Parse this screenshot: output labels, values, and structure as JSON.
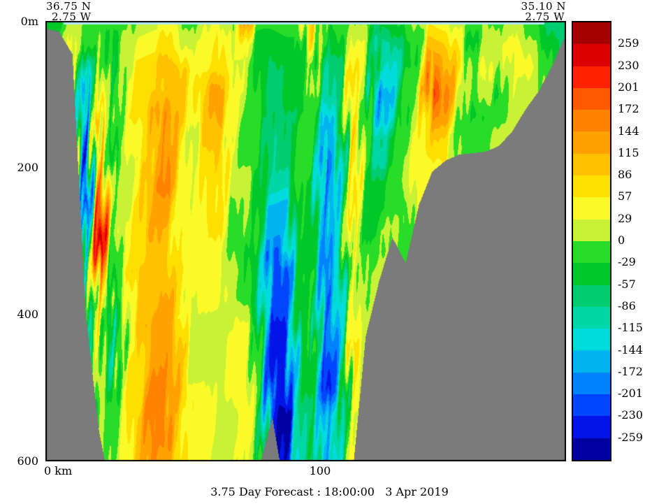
{
  "chart_data": {
    "type": "heatmap",
    "title": "3.75 Day Forecast : 18:00:00   3 Apr 2019",
    "corner_labels": {
      "top_left": [
        "36.75 N",
        "2.75 W"
      ],
      "top_right": [
        "35.10 N",
        "2.75 W"
      ]
    },
    "x_range_km": [
      0,
      190
    ],
    "depth_range_m": [
      0,
      600
    ],
    "xticks": [
      {
        "km": 0,
        "label": "0 km"
      },
      {
        "km": 100,
        "label": "100"
      }
    ],
    "yticks": [
      {
        "m": 0,
        "label": "0m"
      },
      {
        "m": 200,
        "label": "200"
      },
      {
        "m": 400,
        "label": "400"
      },
      {
        "m": 600,
        "label": "600"
      }
    ],
    "colorbar": {
      "levels": [
        259,
        230,
        201,
        172,
        144,
        115,
        86,
        57,
        29,
        0,
        -29,
        -57,
        -86,
        -115,
        -144,
        -172,
        -201,
        -230,
        -259
      ],
      "band_colors": [
        "#a60000",
        "#dc0000",
        "#ff2000",
        "#ff5a00",
        "#ff8200",
        "#ffa200",
        "#ffc100",
        "#ffdf00",
        "#fafa28",
        "#c8f235",
        "#28dc28",
        "#00c828",
        "#00cd70",
        "#00d7a8",
        "#00dcdc",
        "#00b4f0",
        "#0082ff",
        "#0046ff",
        "#0014e6",
        "#0000a0"
      ],
      "mask_color": "#7b7b7b"
    },
    "surface_line_color": "#aee8f8",
    "grid": {
      "note": "coarse reconstruction of the section field; columns uniformly spaced 0-190 km, rows uniformly spaced 0-600 m; values in colorbar units",
      "nx": 40,
      "nz": 20,
      "values_column_major": [
        [
          -70,
          -15,
          -15,
          -15,
          -15,
          -15,
          -15,
          -15,
          -15,
          -15,
          -15,
          -15,
          -15,
          -15,
          -15,
          -15,
          -15,
          -15,
          -15,
          -15
        ],
        [
          -43,
          -15,
          -15,
          -15,
          -15,
          -15,
          -15,
          -15,
          -15,
          -15,
          -15,
          -15,
          -15,
          -15,
          -15,
          -15,
          -15,
          -15,
          -15,
          -15
        ],
        [
          15,
          43,
          43,
          43,
          43,
          43,
          43,
          43,
          43,
          43,
          43,
          43,
          43,
          43,
          43,
          43,
          43,
          43,
          43,
          43
        ],
        [
          -15,
          -43,
          -130,
          -186,
          -215,
          -270,
          -270,
          -245,
          -215,
          -186,
          -186,
          -158,
          -130,
          -100,
          -100,
          -100,
          -100,
          -100,
          -100,
          -100
        ],
        [
          -15,
          15,
          43,
          70,
          70,
          130,
          158,
          186,
          245,
          270,
          245,
          186,
          130,
          100,
          43,
          15,
          15,
          15,
          15,
          15
        ],
        [
          -15,
          -43,
          -70,
          -70,
          -43,
          -43,
          -43,
          -15,
          -15,
          -15,
          -43,
          -43,
          -43,
          -130,
          -130,
          -130,
          -70,
          -15,
          -15,
          -15
        ],
        [
          -15,
          15,
          15,
          43,
          43,
          43,
          15,
          15,
          15,
          43,
          43,
          43,
          15,
          15,
          15,
          70,
          70,
          43,
          43,
          43
        ],
        [
          15,
          43,
          70,
          70,
          70,
          43,
          43,
          43,
          70,
          70,
          70,
          100,
          100,
          100,
          70,
          70,
          70,
          100,
          100,
          100
        ],
        [
          15,
          43,
          70,
          70,
          100,
          100,
          100,
          130,
          130,
          130,
          100,
          100,
          100,
          130,
          130,
          130,
          158,
          158,
          158,
          158
        ],
        [
          43,
          70,
          100,
          100,
          158,
          158,
          158,
          158,
          130,
          100,
          100,
          100,
          130,
          130,
          130,
          158,
          158,
          158,
          158,
          130
        ],
        [
          15,
          43,
          100,
          100,
          100,
          70,
          70,
          70,
          43,
          43,
          43,
          70,
          70,
          70,
          100,
          100,
          100,
          70,
          70,
          70
        ],
        [
          -15,
          15,
          43,
          43,
          43,
          15,
          15,
          15,
          15,
          43,
          43,
          43,
          15,
          15,
          15,
          15,
          43,
          43,
          43,
          43
        ],
        [
          15,
          43,
          43,
          100,
          100,
          100,
          70,
          70,
          70,
          43,
          43,
          43,
          43,
          15,
          15,
          15,
          43,
          43,
          43,
          43
        ],
        [
          43,
          70,
          70,
          130,
          130,
          100,
          100,
          70,
          70,
          70,
          43,
          43,
          43,
          15,
          15,
          15,
          15,
          15,
          15,
          15
        ],
        [
          -15,
          15,
          43,
          43,
          43,
          15,
          15,
          15,
          -15,
          -15,
          -15,
          15,
          15,
          15,
          43,
          43,
          43,
          15,
          15,
          15
        ],
        [
          130,
          43,
          15,
          15,
          -15,
          -15,
          -15,
          15,
          15,
          15,
          -15,
          -15,
          -15,
          43,
          43,
          43,
          43,
          43,
          43,
          43
        ],
        [
          -15,
          -43,
          -43,
          -43,
          -15,
          -15,
          -15,
          -43,
          -43,
          -43,
          -70,
          -70,
          -70,
          -43,
          -43,
          -43,
          -15,
          -15,
          -15,
          -15
        ],
        [
          -15,
          -43,
          -70,
          -70,
          -70,
          -100,
          -100,
          -100,
          -158,
          -158,
          -215,
          -215,
          -215,
          -245,
          -245,
          -245,
          -245,
          -245,
          -245,
          -245
        ],
        [
          -15,
          -43,
          -43,
          -43,
          -70,
          -70,
          -70,
          -100,
          -158,
          -158,
          -158,
          -215,
          -215,
          -215,
          -245,
          -245,
          -245,
          -270,
          -270,
          -270
        ],
        [
          -15,
          -43,
          -43,
          -43,
          -43,
          -15,
          -15,
          -15,
          -15,
          -15,
          -43,
          -43,
          -43,
          -43,
          -70,
          -70,
          -70,
          -100,
          -100,
          -100
        ],
        [
          130,
          100,
          15,
          15,
          -15,
          -15,
          -15,
          -43,
          -43,
          -43,
          -43,
          -15,
          -15,
          -15,
          -15,
          -43,
          -43,
          -43,
          -43,
          -43
        ],
        [
          -43,
          -70,
          -100,
          -100,
          -158,
          -158,
          -215,
          -215,
          -215,
          -186,
          -186,
          -186,
          -215,
          -215,
          -215,
          -245,
          -245,
          -186,
          -186,
          -186
        ],
        [
          -15,
          -43,
          -70,
          -70,
          -70,
          -130,
          -130,
          -130,
          -100,
          -100,
          -100,
          -130,
          -130,
          -130,
          -158,
          -158,
          -158,
          -100,
          -100,
          -100
        ],
        [
          15,
          43,
          70,
          70,
          70,
          100,
          100,
          100,
          70,
          70,
          70,
          43,
          43,
          43,
          70,
          70,
          70,
          43,
          43,
          43
        ],
        [
          -15,
          15,
          15,
          15,
          -15,
          -15,
          -15,
          -43,
          -43,
          -43,
          -15,
          -15,
          -15,
          15,
          15,
          15,
          15,
          15,
          15,
          15
        ],
        [
          -43,
          -100,
          -100,
          -215,
          -186,
          -100,
          -100,
          -43,
          -43,
          -15,
          -15,
          15,
          15,
          15,
          15,
          15,
          15,
          15,
          15,
          15
        ],
        [
          -43,
          -100,
          -130,
          -130,
          -100,
          -43,
          -43,
          -15,
          -15,
          15,
          15,
          15,
          15,
          15,
          15,
          15,
          15,
          15,
          15,
          15
        ],
        [
          -15,
          -43,
          -43,
          -15,
          -15,
          -15,
          15,
          15,
          -15,
          -15,
          -15,
          -15,
          -15,
          -15,
          -15,
          -15,
          -15,
          -15,
          -15,
          -15
        ],
        [
          15,
          -15,
          -15,
          15,
          15,
          43,
          43,
          43,
          43,
          43,
          43,
          43,
          43,
          43,
          43,
          43,
          43,
          43,
          43,
          43
        ],
        [
          43,
          100,
          158,
          215,
          158,
          100,
          43,
          43,
          43,
          43,
          43,
          43,
          43,
          43,
          43,
          43,
          43,
          43,
          43,
          43
        ],
        [
          43,
          100,
          130,
          158,
          130,
          70,
          70,
          70,
          70,
          70,
          70,
          70,
          70,
          70,
          70,
          70,
          70,
          70,
          70,
          70
        ],
        [
          15,
          43,
          70,
          43,
          15,
          -15,
          -15,
          -15,
          -15,
          -15,
          -15,
          -15,
          -15,
          -15,
          -15,
          -15,
          -15,
          -15,
          -15,
          -15
        ],
        [
          -15,
          -43,
          -15,
          -15,
          -43,
          -15,
          -15,
          -15,
          -15,
          -15,
          -15,
          -15,
          -15,
          -15,
          -15,
          -15,
          -15,
          -15,
          -15,
          -15
        ],
        [
          15,
          15,
          43,
          15,
          -15,
          -15,
          -15,
          -15,
          -15,
          -15,
          -15,
          -15,
          -15,
          -15,
          -15,
          -15,
          -15,
          -15,
          -15,
          -15
        ],
        [
          -15,
          15,
          -15,
          -43,
          -15,
          15,
          15,
          15,
          15,
          15,
          15,
          15,
          15,
          15,
          15,
          15,
          15,
          15,
          15,
          15
        ],
        [
          15,
          43,
          43,
          43,
          15,
          15,
          15,
          15,
          15,
          15,
          15,
          15,
          15,
          15,
          15,
          15,
          15,
          15,
          15,
          15
        ],
        [
          -15,
          15,
          43,
          15,
          15,
          15,
          15,
          15,
          15,
          15,
          15,
          15,
          15,
          15,
          15,
          15,
          15,
          15,
          15,
          15
        ],
        [
          -43,
          -15,
          15,
          15,
          15,
          15,
          15,
          15,
          15,
          15,
          15,
          15,
          15,
          15,
          15,
          15,
          15,
          15,
          15,
          15
        ],
        [
          -70,
          -43,
          -43,
          -43,
          -43,
          -43,
          -43,
          -43,
          -43,
          -43,
          -43,
          -43,
          -43,
          -43,
          -43,
          -43,
          -43,
          -43,
          -43,
          -43
        ],
        [
          -70,
          -70,
          -70,
          -70,
          -70,
          -70,
          -70,
          -70,
          -70,
          -70,
          -70,
          -70,
          -70,
          -70,
          -70,
          -70,
          -70,
          -70,
          -70,
          -70
        ]
      ],
      "bathymetry_depth_m": [
        10,
        14,
        45,
        400,
        560,
        650,
        650,
        650,
        650,
        650,
        650,
        650,
        650,
        650,
        650,
        650,
        610,
        540,
        650,
        650,
        650,
        650,
        650,
        620,
        430,
        355,
        295,
        330,
        250,
        205,
        190,
        182,
        180,
        178,
        170,
        150,
        120,
        95,
        60,
        18
      ]
    }
  }
}
